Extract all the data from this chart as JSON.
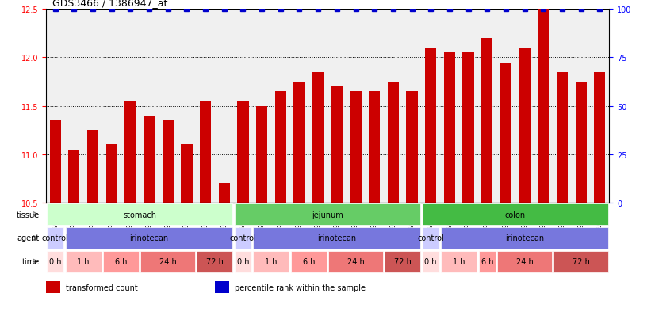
{
  "title": "GDS3466 / 1386947_at",
  "samples": [
    "GSM297524",
    "GSM297525",
    "GSM297526",
    "GSM297527",
    "GSM297528",
    "GSM297529",
    "GSM297530",
    "GSM297531",
    "GSM297532",
    "GSM297533",
    "GSM297534",
    "GSM297535",
    "GSM297536",
    "GSM297537",
    "GSM297538",
    "GSM297539",
    "GSM297540",
    "GSM297541",
    "GSM297542",
    "GSM297543",
    "GSM297544",
    "GSM297545",
    "GSM297546",
    "GSM297547",
    "GSM297548",
    "GSM297549",
    "GSM297550",
    "GSM297551",
    "GSM297552",
    "GSM297553"
  ],
  "bar_values": [
    11.35,
    11.05,
    11.25,
    11.1,
    11.55,
    11.4,
    11.35,
    11.1,
    11.55,
    10.7,
    11.55,
    11.5,
    11.65,
    11.75,
    11.85,
    11.7,
    11.65,
    11.65,
    11.75,
    11.65,
    12.1,
    12.05,
    12.05,
    12.2,
    11.95,
    12.1,
    12.5,
    11.85,
    11.75,
    11.85
  ],
  "percentile_values": [
    100,
    100,
    100,
    100,
    100,
    100,
    100,
    100,
    100,
    100,
    100,
    100,
    100,
    100,
    100,
    100,
    100,
    100,
    100,
    100,
    100,
    100,
    100,
    100,
    100,
    100,
    100,
    100,
    100,
    100
  ],
  "bar_color": "#CC0000",
  "percentile_color": "#0000CC",
  "ylim_left": [
    10.5,
    12.5
  ],
  "ylim_right": [
    0,
    100
  ],
  "yticks_left": [
    10.5,
    11.0,
    11.5,
    12.0,
    12.5
  ],
  "yticks_right": [
    0,
    25,
    50,
    75,
    100
  ],
  "dotted_lines": [
    11.0,
    11.5,
    12.0
  ],
  "tissue_row": [
    {
      "label": "stomach",
      "start": 0,
      "end": 9,
      "color": "#ccffcc"
    },
    {
      "label": "jejunum",
      "start": 10,
      "end": 19,
      "color": "#66cc66"
    },
    {
      "label": "colon",
      "start": 20,
      "end": 29,
      "color": "#44bb44"
    }
  ],
  "agent_row": [
    {
      "label": "control",
      "start": 0,
      "end": 0,
      "color": "#ccccff"
    },
    {
      "label": "irinotecan",
      "start": 1,
      "end": 9,
      "color": "#7777dd"
    },
    {
      "label": "control",
      "start": 10,
      "end": 10,
      "color": "#ccccff"
    },
    {
      "label": "irinotecan",
      "start": 11,
      "end": 19,
      "color": "#7777dd"
    },
    {
      "label": "control",
      "start": 20,
      "end": 20,
      "color": "#ccccff"
    },
    {
      "label": "irinotecan",
      "start": 21,
      "end": 29,
      "color": "#7777dd"
    }
  ],
  "time_row": [
    {
      "label": "0 h",
      "start": 0,
      "end": 0,
      "color": "#ffdddd"
    },
    {
      "label": "1 h",
      "start": 1,
      "end": 2,
      "color": "#ffbbbb"
    },
    {
      "label": "6 h",
      "start": 3,
      "end": 4,
      "color": "#ff9999"
    },
    {
      "label": "24 h",
      "start": 5,
      "end": 7,
      "color": "#ee7777"
    },
    {
      "label": "72 h",
      "start": 8,
      "end": 9,
      "color": "#cc5555"
    },
    {
      "label": "0 h",
      "start": 10,
      "end": 10,
      "color": "#ffdddd"
    },
    {
      "label": "1 h",
      "start": 11,
      "end": 12,
      "color": "#ffbbbb"
    },
    {
      "label": "6 h",
      "start": 13,
      "end": 14,
      "color": "#ff9999"
    },
    {
      "label": "24 h",
      "start": 15,
      "end": 17,
      "color": "#ee7777"
    },
    {
      "label": "72 h",
      "start": 18,
      "end": 19,
      "color": "#cc5555"
    },
    {
      "label": "0 h",
      "start": 20,
      "end": 20,
      "color": "#ffdddd"
    },
    {
      "label": "1 h",
      "start": 21,
      "end": 22,
      "color": "#ffbbbb"
    },
    {
      "label": "6 h",
      "start": 23,
      "end": 23,
      "color": "#ff9999"
    },
    {
      "label": "24 h",
      "start": 24,
      "end": 26,
      "color": "#ee7777"
    },
    {
      "label": "72 h",
      "start": 27,
      "end": 29,
      "color": "#cc5555"
    }
  ],
  "legend_items": [
    {
      "label": "transformed count",
      "color": "#CC0000"
    },
    {
      "label": "percentile rank within the sample",
      "color": "#0000CC"
    }
  ]
}
